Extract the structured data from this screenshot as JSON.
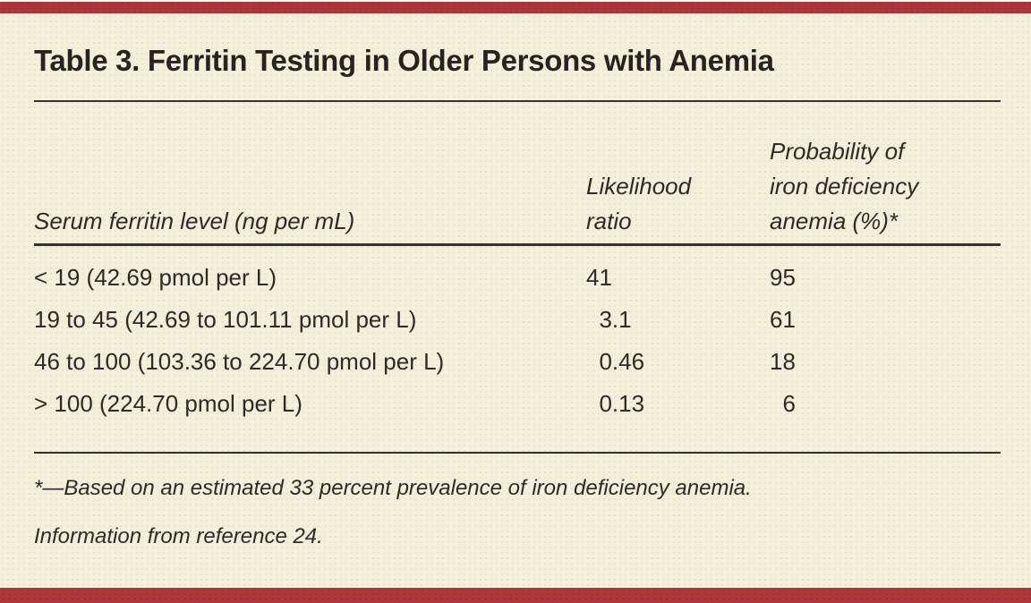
{
  "colors": {
    "banner_red": "#ae3538",
    "sheet_cream": "#f2efda",
    "text_dark": "#2e2a25",
    "rule_dark": "#35312b"
  },
  "table": {
    "title": "Table 3. Ferritin Testing in Older Persons with Anemia",
    "columns": {
      "ferritin": "Serum ferritin level (ng per mL)",
      "likelihood_ratio": "Likelihood\nratio",
      "probability": "Probability of\niron deficiency\nanemia (%)*"
    },
    "rows": [
      {
        "ferritin": "< 19 (42.69 pmol per L)",
        "likelihood_ratio": "41",
        "probability": "95"
      },
      {
        "ferritin": "19 to 45 (42.69 to 101.11 pmol per L)",
        "likelihood_ratio": "3.1",
        "probability": "61"
      },
      {
        "ferritin": "46 to 100 (103.36 to 224.70 pmol per L)",
        "likelihood_ratio": "0.46",
        "probability": "18"
      },
      {
        "ferritin": "> 100 (224.70 pmol per L)",
        "likelihood_ratio": "0.13",
        "probability": "6"
      }
    ]
  },
  "footnotes": {
    "asterisk_note": "*—Based on an estimated 33 percent prevalence of iron deficiency anemia.",
    "source_note": "Information from reference 24."
  }
}
